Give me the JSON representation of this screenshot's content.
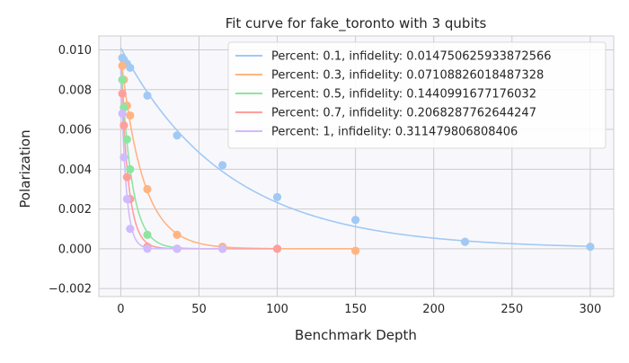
{
  "chart_data": {
    "type": "scatter",
    "title": "Fit curve for fake_toronto with 3 qubits",
    "xlabel": "Benchmark Depth",
    "ylabel": "Polarization",
    "xlim": [
      -14,
      315
    ],
    "ylim": [
      -0.0024,
      0.0107
    ],
    "xticks": [
      0,
      50,
      100,
      150,
      200,
      250,
      300
    ],
    "xtick_labels": [
      "0",
      "50",
      "100",
      "150",
      "200",
      "250",
      "300"
    ],
    "yticks": [
      -0.002,
      0.0,
      0.002,
      0.004,
      0.006,
      0.008,
      0.01
    ],
    "ytick_labels": [
      "−0.002",
      "0.000",
      "0.002",
      "0.004",
      "0.006",
      "0.008",
      "0.010"
    ],
    "grid": true,
    "legend_position": "top-right",
    "series": [
      {
        "name": "Percent: 0.1, infidelity: 0.01475062593387256 6",
        "legend_label": "Percent: 0.1, infidelity: 0.014750625933872566",
        "color": "#a1c9f4",
        "fit": {
          "amplitude": 0.0101,
          "decay_rate": 0.0147
        },
        "x": [
          1,
          2,
          4,
          6,
          17,
          36,
          65,
          100,
          150,
          220,
          300
        ],
        "y": [
          0.0096,
          0.0095,
          0.0093,
          0.0091,
          0.0077,
          0.0057,
          0.0042,
          0.0026,
          0.00145,
          0.00035,
          0.0001
        ]
      },
      {
        "name": "Percent: 0.3, infidelity: 0.07108826018487328",
        "legend_label": "Percent: 0.3, infidelity: 0.07108826018487328",
        "color": "#ffb482",
        "fit": {
          "amplitude": 0.0097,
          "decay_rate": 0.071
        },
        "x": [
          1,
          2,
          4,
          6,
          17,
          36,
          65,
          100,
          150
        ],
        "y": [
          0.0092,
          0.0085,
          0.0072,
          0.0067,
          0.003,
          0.0007,
          0.0001,
          0.0,
          -0.0001
        ]
      },
      {
        "name": "Percent: 0.5, infidelity: 0.1440991677176032",
        "legend_label": "Percent: 0.5, infidelity: 0.1440991677176032",
        "color": "#8de5a1",
        "fit": {
          "amplitude": 0.0095,
          "decay_rate": 0.144
        },
        "x": [
          1,
          2,
          4,
          6,
          17,
          36,
          65
        ],
        "y": [
          0.0085,
          0.0071,
          0.0055,
          0.004,
          0.0007,
          0.0,
          0.0
        ]
      },
      {
        "name": "Percent: 0.7, infidelity: 0.2068287762644247",
        "legend_label": "Percent: 0.7, infidelity: 0.2068287762644247",
        "color": "#ff9f9b",
        "fit": {
          "amplitude": 0.0093,
          "decay_rate": 0.2068
        },
        "x": [
          1,
          2,
          4,
          6,
          17,
          36,
          65,
          100
        ],
        "y": [
          0.0078,
          0.0062,
          0.0036,
          0.0025,
          0.0001,
          0.0,
          0.0,
          0.0
        ]
      },
      {
        "name": "Percent: 1, infidelity: 0.311479806808406",
        "legend_label": "Percent: 1, infidelity: 0.311479806808406",
        "color": "#d0bbff",
        "fit": {
          "amplitude": 0.0092,
          "decay_rate": 0.3115
        },
        "x": [
          1,
          2,
          4,
          6,
          17,
          36,
          65
        ],
        "y": [
          0.0068,
          0.0046,
          0.0025,
          0.001,
          0.0,
          0.0,
          0.0
        ]
      }
    ]
  }
}
